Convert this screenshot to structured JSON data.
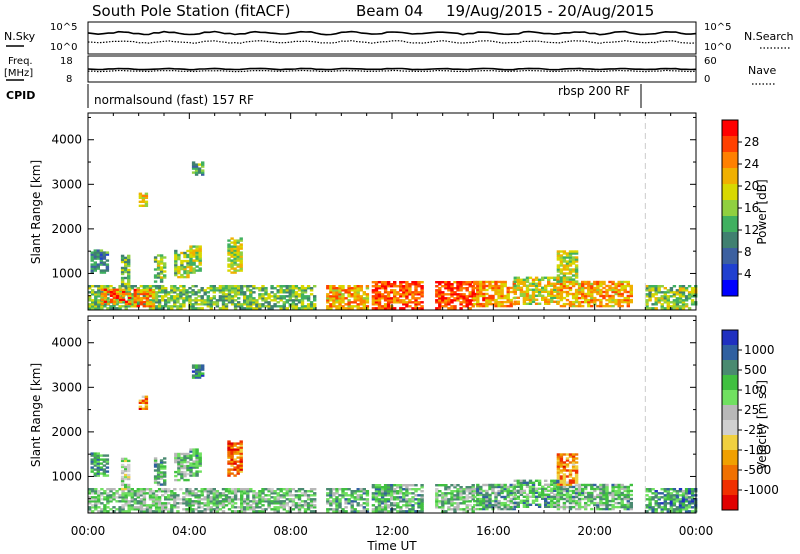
{
  "header": {
    "title": "South Pole Station (fitACF)",
    "beam": "Beam 04",
    "date_range": "19/Aug/2015 - 20/Aug/2015"
  },
  "top_panels": {
    "nsky_label": "N.Sky",
    "nsearch_label": "N.Search",
    "freq_label_line1": "Freq.",
    "freq_label_line2": "[MHz]",
    "nave_label": "Nave",
    "cpid_label": "CPID",
    "noise_ticks_left": [
      "10^5",
      "10^0"
    ],
    "noise_ticks_right": [
      "10^5",
      "10^0"
    ],
    "freq_ticks_left": [
      "18",
      "8"
    ],
    "freq_ticks_right": [
      "60",
      "0"
    ],
    "cpid_segments": [
      {
        "label": "normalsound (fast) 157 RF",
        "start_hour": 0
      },
      {
        "label": "rbsp 200 RF",
        "start_hour": 22
      }
    ]
  },
  "colorbars": {
    "power": {
      "label": "Power [dB]",
      "ticks": [
        "28",
        "24",
        "20",
        "16",
        "12",
        "8",
        "4"
      ],
      "colors": [
        "#ff0000",
        "#ff4000",
        "#ff8000",
        "#f0b000",
        "#d8d800",
        "#90d040",
        "#40b060",
        "#408070",
        "#3c60a0",
        "#2040d0",
        "#0000ff"
      ]
    },
    "velocity": {
      "label": "Velocity [m s",
      "label_sup": "-1",
      "label_end": "]",
      "ticks": [
        "1000",
        "500",
        "100",
        "25",
        "-25",
        "-100",
        "-500",
        "-1000"
      ],
      "colors": [
        "#2030c0",
        "#3060a0",
        "#4a8a70",
        "#40c040",
        "#70e060",
        "#b8b8b8",
        "#d0d0d0",
        "#f0d040",
        "#f0a000",
        "#f07000",
        "#f03000",
        "#e00000"
      ]
    }
  },
  "chart_data": [
    {
      "type": "heatmap",
      "name": "power",
      "ylabel": "Slant Range [km]",
      "yticks": [
        1000,
        2000,
        3000,
        4000
      ],
      "ylim": [
        180,
        4600
      ],
      "xlim": [
        0,
        24
      ],
      "xticks": [
        "00:00",
        "04:00",
        "08:00",
        "12:00",
        "16:00",
        "20:00",
        "00:00"
      ],
      "patches": [
        {
          "x0": 0.0,
          "x1": 9.0,
          "r0": 200,
          "r1": 700,
          "level": 0.45
        },
        {
          "x0": 0.5,
          "x1": 1.6,
          "r0": 300,
          "r1": 650,
          "level": 0.8
        },
        {
          "x0": 1.8,
          "x1": 2.6,
          "r0": 250,
          "r1": 650,
          "level": 0.75
        },
        {
          "x0": 0.1,
          "x1": 0.8,
          "r0": 1000,
          "r1": 1500,
          "level": 0.3
        },
        {
          "x0": 1.3,
          "x1": 1.6,
          "r0": 700,
          "r1": 1400,
          "level": 0.45
        },
        {
          "x0": 2.6,
          "x1": 3.0,
          "r0": 800,
          "r1": 1400,
          "level": 0.5
        },
        {
          "x0": 3.4,
          "x1": 3.9,
          "r0": 900,
          "r1": 1500,
          "level": 0.5
        },
        {
          "x0": 4.0,
          "x1": 4.4,
          "r0": 1000,
          "r1": 1600,
          "level": 0.55
        },
        {
          "x0": 5.5,
          "x1": 6.1,
          "r0": 1000,
          "r1": 1800,
          "level": 0.55
        },
        {
          "x0": 4.1,
          "x1": 4.5,
          "r0": 3200,
          "r1": 3500,
          "level": 0.4
        },
        {
          "x0": 2.0,
          "x1": 2.3,
          "r0": 2500,
          "r1": 2800,
          "level": 0.6
        },
        {
          "x0": 9.4,
          "x1": 11.0,
          "r0": 200,
          "r1": 700,
          "level": 0.7
        },
        {
          "x0": 11.2,
          "x1": 13.2,
          "r0": 200,
          "r1": 800,
          "level": 0.85
        },
        {
          "x0": 13.7,
          "x1": 15.2,
          "r0": 200,
          "r1": 800,
          "level": 0.88
        },
        {
          "x0": 15.2,
          "x1": 16.8,
          "r0": 250,
          "r1": 800,
          "level": 0.75
        },
        {
          "x0": 16.8,
          "x1": 18.5,
          "r0": 300,
          "r1": 900,
          "level": 0.6
        },
        {
          "x0": 18.5,
          "x1": 21.5,
          "r0": 250,
          "r1": 800,
          "level": 0.7
        },
        {
          "x0": 18.5,
          "x1": 19.3,
          "r0": 800,
          "r1": 1500,
          "level": 0.55
        },
        {
          "x0": 22.0,
          "x1": 24.0,
          "r0": 200,
          "r1": 700,
          "level": 0.5
        }
      ]
    },
    {
      "type": "heatmap",
      "name": "velocity",
      "ylabel": "Slant Range [km]",
      "yticks": [
        1000,
        2000,
        3000,
        4000
      ],
      "ylim": [
        180,
        4600
      ],
      "xlim": [
        0,
        24
      ],
      "xticks": [
        "00:00",
        "04:00",
        "08:00",
        "12:00",
        "16:00",
        "20:00",
        "00:00"
      ],
      "xlabel": "Time UT",
      "patches": [
        {
          "x0": 0.0,
          "x1": 9.0,
          "r0": 200,
          "r1": 700,
          "level": 0.35
        },
        {
          "x0": 0.1,
          "x1": 0.8,
          "r0": 1000,
          "r1": 1500,
          "level": 0.25
        },
        {
          "x0": 1.3,
          "x1": 1.6,
          "r0": 700,
          "r1": 1400,
          "level": 0.45
        },
        {
          "x0": 2.6,
          "x1": 3.0,
          "r0": 800,
          "r1": 1400,
          "level": 0.3
        },
        {
          "x0": 3.4,
          "x1": 3.9,
          "r0": 900,
          "r1": 1500,
          "level": 0.35
        },
        {
          "x0": 4.0,
          "x1": 4.4,
          "r0": 1000,
          "r1": 1600,
          "level": 0.3
        },
        {
          "x0": 5.5,
          "x1": 6.1,
          "r0": 1000,
          "r1": 1800,
          "level": 0.8
        },
        {
          "x0": 4.1,
          "x1": 4.5,
          "r0": 3200,
          "r1": 3500,
          "level": 0.2
        },
        {
          "x0": 2.0,
          "x1": 2.3,
          "r0": 2500,
          "r1": 2800,
          "level": 0.75
        },
        {
          "x0": 9.4,
          "x1": 11.0,
          "r0": 200,
          "r1": 700,
          "level": 0.3
        },
        {
          "x0": 11.2,
          "x1": 13.2,
          "r0": 200,
          "r1": 800,
          "level": 0.3
        },
        {
          "x0": 13.7,
          "x1": 15.2,
          "r0": 200,
          "r1": 800,
          "level": 0.35
        },
        {
          "x0": 15.2,
          "x1": 16.8,
          "r0": 250,
          "r1": 800,
          "level": 0.3
        },
        {
          "x0": 16.8,
          "x1": 18.5,
          "r0": 300,
          "r1": 900,
          "level": 0.3
        },
        {
          "x0": 18.5,
          "x1": 21.5,
          "r0": 250,
          "r1": 800,
          "level": 0.32
        },
        {
          "x0": 18.5,
          "x1": 19.3,
          "r0": 800,
          "r1": 1500,
          "level": 0.75
        },
        {
          "x0": 22.0,
          "x1": 24.0,
          "r0": 200,
          "r1": 700,
          "level": 0.25
        }
      ]
    }
  ]
}
